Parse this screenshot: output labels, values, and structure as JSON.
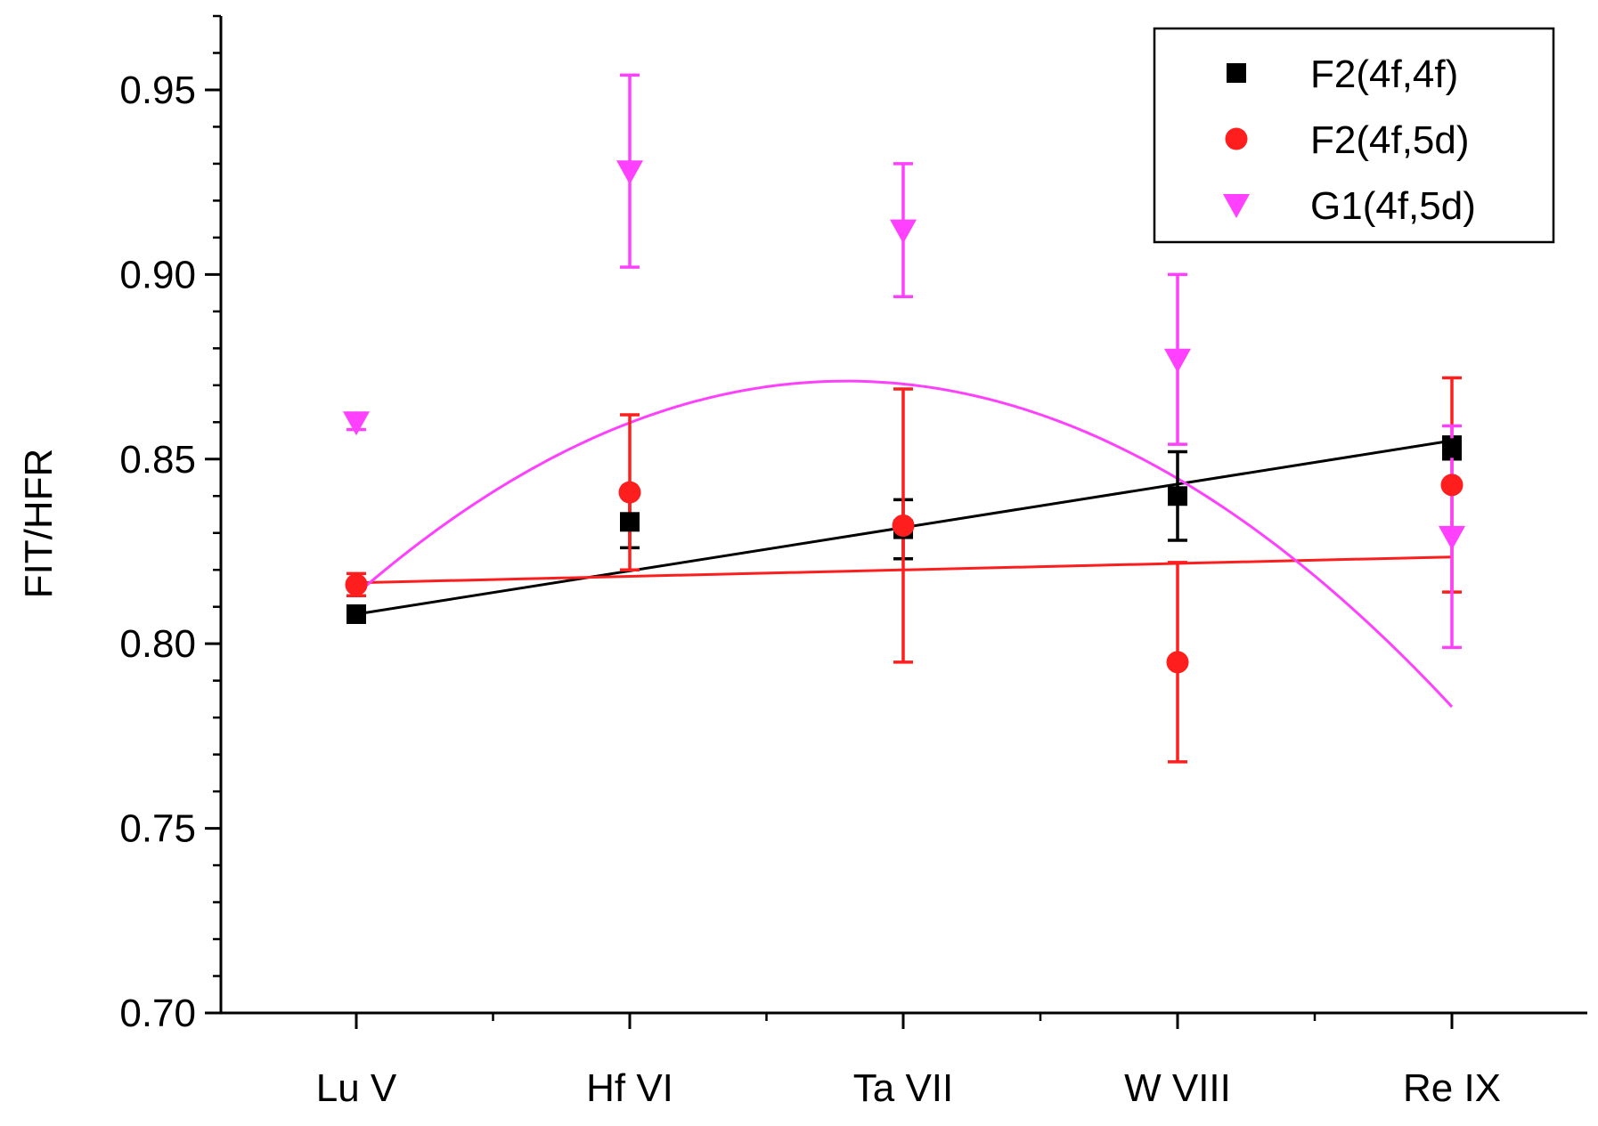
{
  "chart_data": {
    "type": "scatter",
    "title": "",
    "xlabel": "",
    "ylabel": "FIT/HFR",
    "categories": [
      "Lu V",
      "Hf VI",
      "Ta VII",
      "W VIII",
      "Re IX"
    ],
    "ylim": [
      0.7,
      0.97
    ],
    "yticks": [
      0.7,
      0.75,
      0.8,
      0.85,
      0.9,
      0.95
    ],
    "ytick_labels": [
      "0.70",
      "0.75",
      "0.80",
      "0.85",
      "0.90",
      "0.95"
    ],
    "legend_position": "top-right",
    "series": [
      {
        "name": "F2(4f,4f)",
        "marker": "square",
        "color": "#000000",
        "values": [
          0.808,
          0.833,
          0.831,
          0.84,
          0.853
        ],
        "errors": [
          0.002,
          0.007,
          0.008,
          0.012,
          0.003
        ],
        "fit": {
          "kind": "linear",
          "from": 0.808,
          "to": 0.855
        }
      },
      {
        "name": "F2(4f,5d)",
        "marker": "circle",
        "color": "#ff1e1e",
        "values": [
          0.816,
          0.841,
          0.832,
          0.795,
          0.843
        ],
        "errors": [
          0.003,
          0.021,
          0.037,
          0.027,
          0.029
        ],
        "fit": {
          "kind": "linear",
          "from": 0.8165,
          "to": 0.8235
        }
      },
      {
        "name": "G1(4f,5d)",
        "marker": "triangle-down",
        "color": "#ff40ff",
        "values": [
          0.86,
          0.928,
          0.912,
          0.877,
          0.829
        ],
        "errors": [
          0.002,
          0.026,
          0.018,
          0.023,
          0.03
        ],
        "fit": {
          "kind": "quadratic",
          "coeffs": [
            0.8134,
            0.06454,
            -0.01804
          ],
          "x_from": 0,
          "x_to": 4
        }
      }
    ]
  }
}
